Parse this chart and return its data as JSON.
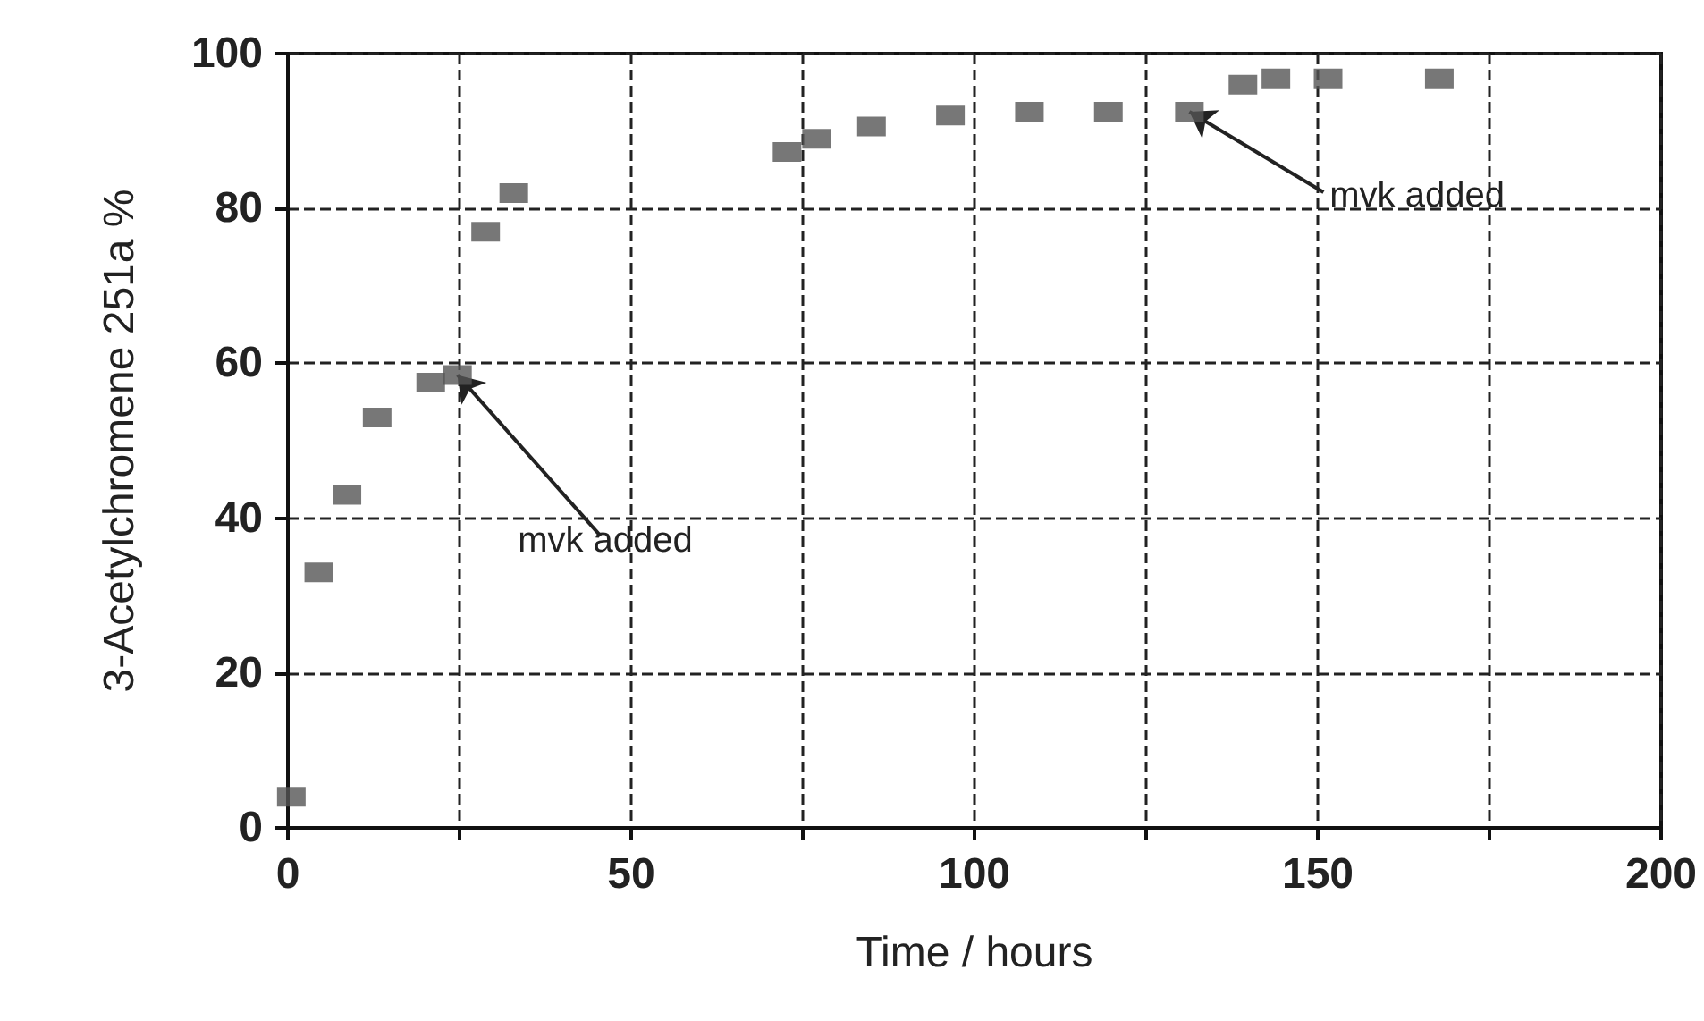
{
  "chart_data": {
    "type": "scatter",
    "xlabel": "Time / hours",
    "ylabel": "3-Acetylchromene 251a %",
    "x": [
      0.5,
      4.5,
      8.6,
      13,
      20.8,
      24.7,
      28.8,
      32.9,
      72.7,
      77,
      85,
      96.5,
      108,
      119.5,
      131.3,
      139.1,
      143.9,
      151.5,
      167.7
    ],
    "series": [
      {
        "color": "#555555",
        "values": [
          4,
          33,
          43,
          53,
          57.5,
          58.5,
          77,
          82,
          87.3,
          89,
          90.6,
          92,
          92.5,
          92.5,
          92.5,
          96,
          96.8,
          96.8,
          96.8
        ]
      }
    ],
    "xlim": [
      0,
      200
    ],
    "xticks": [
      0,
      {
        "value": 25,
        "label": null
      },
      50,
      {
        "value": 75,
        "label": null
      },
      100,
      {
        "value": 125,
        "label": null
      },
      150,
      {
        "value": 175,
        "label": null
      },
      200
    ],
    "ylim": [
      0,
      100
    ],
    "yticks": [
      0,
      20,
      40,
      60,
      80,
      100
    ],
    "grid": true,
    "marker": "square",
    "annotations": [
      {
        "text": "mvk added",
        "x": 24.7,
        "y": 58.5
      },
      {
        "text": "mvk added",
        "x": 131.3,
        "y": 92.5
      }
    ]
  }
}
